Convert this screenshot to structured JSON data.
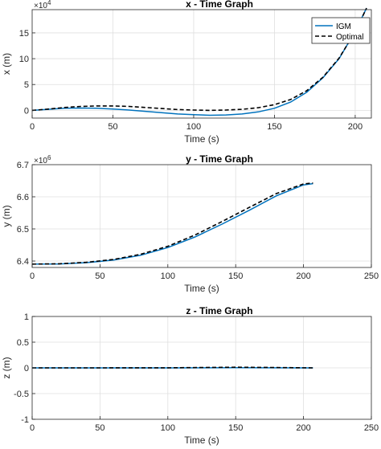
{
  "chart_data": [
    {
      "type": "line",
      "title": "x - Time Graph",
      "xlabel": "Time (s)",
      "ylabel": "x (m)",
      "xlim": [
        0,
        210
      ],
      "ylim": [
        -1.5,
        19.5
      ],
      "xticks": [
        0,
        50,
        100,
        150,
        200
      ],
      "xtick_labels": [
        "0",
        "50",
        "100",
        "150",
        "200"
      ],
      "yticks": [
        0,
        5,
        10,
        15
      ],
      "ytick_labels": [
        "0",
        "5",
        "10",
        "15"
      ],
      "exponent_label": "×10",
      "exponent_power": "4",
      "grid": true,
      "legend": {
        "location": "top-right",
        "entries": [
          "IGM",
          "Optimal"
        ]
      },
      "series": [
        {
          "name": "IGM",
          "color": "#0072BD",
          "style": "solid",
          "x": [
            0,
            10,
            20,
            30,
            40,
            50,
            60,
            70,
            80,
            90,
            100,
            110,
            120,
            130,
            140,
            150,
            160,
            170,
            180,
            190,
            200,
            207
          ],
          "y": [
            0,
            0.2,
            0.4,
            0.45,
            0.4,
            0.25,
            0.05,
            -0.2,
            -0.45,
            -0.7,
            -0.85,
            -0.95,
            -0.9,
            -0.7,
            -0.3,
            0.4,
            1.6,
            3.5,
            6.3,
            10.0,
            15.3,
            19.8
          ]
        },
        {
          "name": "Optimal",
          "color": "#000000",
          "style": "dashed",
          "x": [
            0,
            10,
            20,
            30,
            40,
            50,
            60,
            70,
            80,
            90,
            100,
            110,
            120,
            130,
            140,
            150,
            160,
            170,
            180,
            190,
            200,
            207
          ],
          "y": [
            0,
            0.25,
            0.55,
            0.75,
            0.85,
            0.85,
            0.75,
            0.55,
            0.35,
            0.15,
            0.05,
            0.0,
            0.05,
            0.2,
            0.5,
            1.1,
            2.1,
            3.8,
            6.4,
            10.1,
            15.2,
            19.8
          ]
        }
      ]
    },
    {
      "type": "line",
      "title": "y - Time Graph",
      "xlabel": "Time (s)",
      "ylabel": "y (m)",
      "xlim": [
        0,
        250
      ],
      "ylim": [
        6.38,
        6.7
      ],
      "xticks": [
        0,
        50,
        100,
        150,
        200,
        250
      ],
      "xtick_labels": [
        "0",
        "50",
        "100",
        "150",
        "200",
        "250"
      ],
      "yticks": [
        6.4,
        6.5,
        6.6,
        6.7
      ],
      "ytick_labels": [
        "6.4",
        "6.5",
        "6.6",
        "6.7"
      ],
      "exponent_label": "×10",
      "exponent_power": "6",
      "grid": true,
      "series": [
        {
          "name": "IGM",
          "color": "#0072BD",
          "style": "solid",
          "x": [
            0,
            20,
            40,
            60,
            80,
            100,
            120,
            140,
            160,
            180,
            200,
            207
          ],
          "y": [
            6.3905,
            6.391,
            6.395,
            6.403,
            6.418,
            6.442,
            6.475,
            6.515,
            6.558,
            6.603,
            6.637,
            6.641
          ]
        },
        {
          "name": "Optimal",
          "color": "#000000",
          "style": "dashed",
          "x": [
            0,
            20,
            40,
            60,
            80,
            100,
            120,
            140,
            160,
            180,
            200,
            207
          ],
          "y": [
            6.3905,
            6.3915,
            6.396,
            6.405,
            6.421,
            6.446,
            6.481,
            6.523,
            6.567,
            6.61,
            6.64,
            6.643
          ]
        }
      ]
    },
    {
      "type": "line",
      "title": "z - Time Graph",
      "xlabel": "Time (s)",
      "ylabel": "z (m)",
      "xlim": [
        0,
        250
      ],
      "ylim": [
        -1,
        1
      ],
      "xticks": [
        0,
        50,
        100,
        150,
        200,
        250
      ],
      "xtick_labels": [
        "0",
        "50",
        "100",
        "150",
        "200",
        "250"
      ],
      "yticks": [
        -1,
        -0.5,
        0,
        0.5,
        1
      ],
      "ytick_labels": [
        "-1",
        "-0.5",
        "0",
        "0.5",
        "1"
      ],
      "grid": true,
      "series": [
        {
          "name": "IGM",
          "color": "#0072BD",
          "style": "solid",
          "x": [
            0,
            50,
            100,
            150,
            207
          ],
          "y": [
            0,
            0,
            0,
            0.005,
            0
          ]
        },
        {
          "name": "Optimal",
          "color": "#000000",
          "style": "dashed",
          "x": [
            0,
            50,
            100,
            150,
            175,
            207
          ],
          "y": [
            0,
            0,
            0.002,
            0.012,
            0.008,
            0
          ]
        }
      ]
    }
  ]
}
